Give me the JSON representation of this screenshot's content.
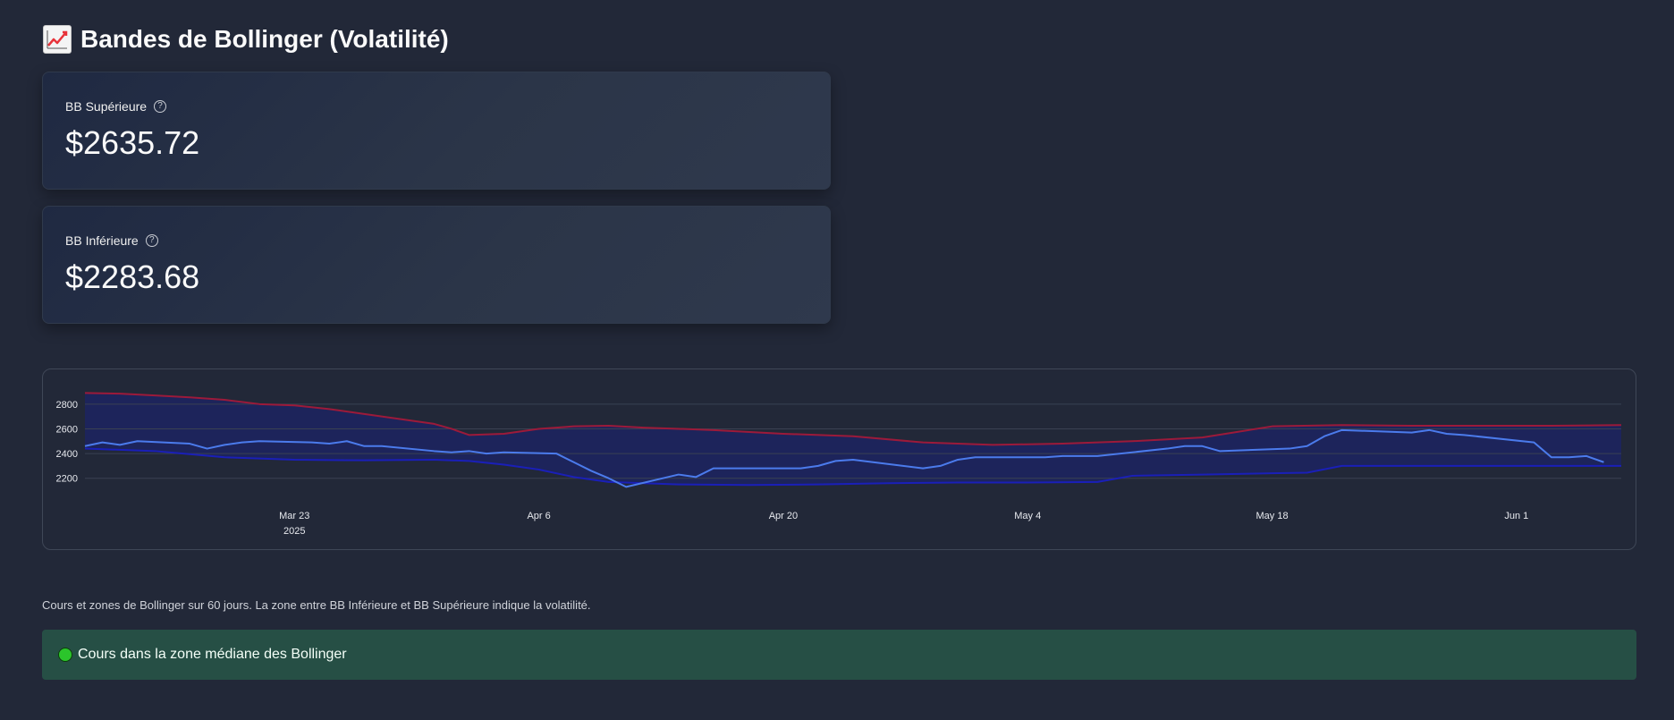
{
  "header": {
    "title": "Bandes de Bollinger (Volatilité)",
    "icon": "chart-increasing-icon"
  },
  "metrics": [
    {
      "label": "BB Supérieure",
      "value": "$2635.72",
      "help_icon": "question-circle-icon"
    },
    {
      "label": "BB Inférieure",
      "value": "$2283.68",
      "help_icon": "question-circle-icon"
    }
  ],
  "caption": "Cours et zones de Bollinger sur 60 jours. La zone entre BB Inférieure et BB Supérieure indique la volatilité.",
  "status": {
    "text": "Cours dans la zone médiane des Bollinger",
    "indicator_color": "#2bc52b"
  },
  "colors": {
    "background": "#222838",
    "price_line": "#4b7bec",
    "upper_band": "#9c1a3a",
    "lower_band": "#1a1fb8",
    "band_fill": "#1c2362",
    "status_bg": "#264f45"
  },
  "chart_data": {
    "type": "line",
    "x_ticks": [
      {
        "date": "2025-03-23",
        "label": "Mar 23",
        "sublabel": "2025"
      },
      {
        "date": "2025-04-06",
        "label": "Apr 6",
        "sublabel": ""
      },
      {
        "date": "2025-04-20",
        "label": "Apr 20",
        "sublabel": ""
      },
      {
        "date": "2025-05-04",
        "label": "May 4",
        "sublabel": ""
      },
      {
        "date": "2025-05-18",
        "label": "May 18",
        "sublabel": ""
      },
      {
        "date": "2025-06-01",
        "label": "Jun 1",
        "sublabel": ""
      }
    ],
    "y_ticks": [
      2200,
      2400,
      2600,
      2800
    ],
    "ylim": [
      2140,
      2900
    ],
    "xlim": [
      "2025-03-11",
      "2025-06-07"
    ],
    "grid": true,
    "series": [
      {
        "role": "upper_band",
        "x": [
          "2025-03-11",
          "2025-03-13",
          "2025-03-15",
          "2025-03-17",
          "2025-03-19",
          "2025-03-21",
          "2025-03-23",
          "2025-03-25",
          "2025-03-27",
          "2025-03-29",
          "2025-03-31",
          "2025-04-01",
          "2025-04-02",
          "2025-04-04",
          "2025-04-06",
          "2025-04-08",
          "2025-04-10",
          "2025-04-12",
          "2025-04-16",
          "2025-04-20",
          "2025-04-24",
          "2025-04-28",
          "2025-05-02",
          "2025-05-06",
          "2025-05-10",
          "2025-05-14",
          "2025-05-18",
          "2025-05-22",
          "2025-05-26",
          "2025-05-30",
          "2025-06-03",
          "2025-06-07"
        ],
        "y": [
          2890,
          2885,
          2870,
          2855,
          2835,
          2800,
          2790,
          2760,
          2720,
          2680,
          2640,
          2600,
          2550,
          2560,
          2600,
          2620,
          2625,
          2610,
          2590,
          2560,
          2540,
          2490,
          2470,
          2480,
          2500,
          2530,
          2620,
          2630,
          2625,
          2625,
          2625,
          2630
        ]
      },
      {
        "role": "lower_band",
        "x": [
          "2025-03-11",
          "2025-03-15",
          "2025-03-19",
          "2025-03-23",
          "2025-03-27",
          "2025-03-31",
          "2025-04-02",
          "2025-04-04",
          "2025-04-06",
          "2025-04-08",
          "2025-04-10",
          "2025-04-14",
          "2025-04-18",
          "2025-04-22",
          "2025-04-26",
          "2025-04-30",
          "2025-05-04",
          "2025-05-08",
          "2025-05-10",
          "2025-05-14",
          "2025-05-18",
          "2025-05-20",
          "2025-05-22",
          "2025-05-26",
          "2025-05-30",
          "2025-06-03",
          "2025-06-07"
        ],
        "y": [
          2440,
          2420,
          2370,
          2350,
          2345,
          2350,
          2340,
          2310,
          2270,
          2210,
          2170,
          2150,
          2145,
          2150,
          2160,
          2165,
          2165,
          2170,
          2220,
          2230,
          2240,
          2245,
          2300,
          2300,
          2300,
          2300,
          2300
        ]
      },
      {
        "role": "price",
        "x": [
          "2025-03-11",
          "2025-03-12",
          "2025-03-13",
          "2025-03-14",
          "2025-03-17",
          "2025-03-18",
          "2025-03-19",
          "2025-03-20",
          "2025-03-21",
          "2025-03-24",
          "2025-03-25",
          "2025-03-26",
          "2025-03-27",
          "2025-03-28",
          "2025-03-31",
          "2025-04-01",
          "2025-04-02",
          "2025-04-03",
          "2025-04-04",
          "2025-04-07",
          "2025-04-08",
          "2025-04-09",
          "2025-04-10",
          "2025-04-11",
          "2025-04-14",
          "2025-04-15",
          "2025-04-16",
          "2025-04-21",
          "2025-04-22",
          "2025-04-23",
          "2025-04-24",
          "2025-04-28",
          "2025-04-29",
          "2025-04-30",
          "2025-05-01",
          "2025-05-05",
          "2025-05-06",
          "2025-05-07",
          "2025-05-08",
          "2025-05-12",
          "2025-05-13",
          "2025-05-14",
          "2025-05-15",
          "2025-05-19",
          "2025-05-20",
          "2025-05-21",
          "2025-05-22",
          "2025-05-26",
          "2025-05-27",
          "2025-05-28",
          "2025-05-29",
          "2025-06-02",
          "2025-06-03",
          "2025-06-04",
          "2025-06-05",
          "2025-06-06"
        ],
        "y": [
          2460,
          2490,
          2470,
          2500,
          2480,
          2440,
          2470,
          2490,
          2500,
          2490,
          2480,
          2500,
          2460,
          2460,
          2420,
          2410,
          2420,
          2400,
          2410,
          2400,
          2330,
          2260,
          2200,
          2130,
          2230,
          2210,
          2280,
          2280,
          2300,
          2340,
          2350,
          2280,
          2300,
          2350,
          2370,
          2370,
          2380,
          2380,
          2380,
          2440,
          2460,
          2460,
          2420,
          2440,
          2460,
          2540,
          2590,
          2570,
          2590,
          2560,
          2550,
          2490,
          2370,
          2370,
          2380,
          2330
        ]
      }
    ]
  }
}
